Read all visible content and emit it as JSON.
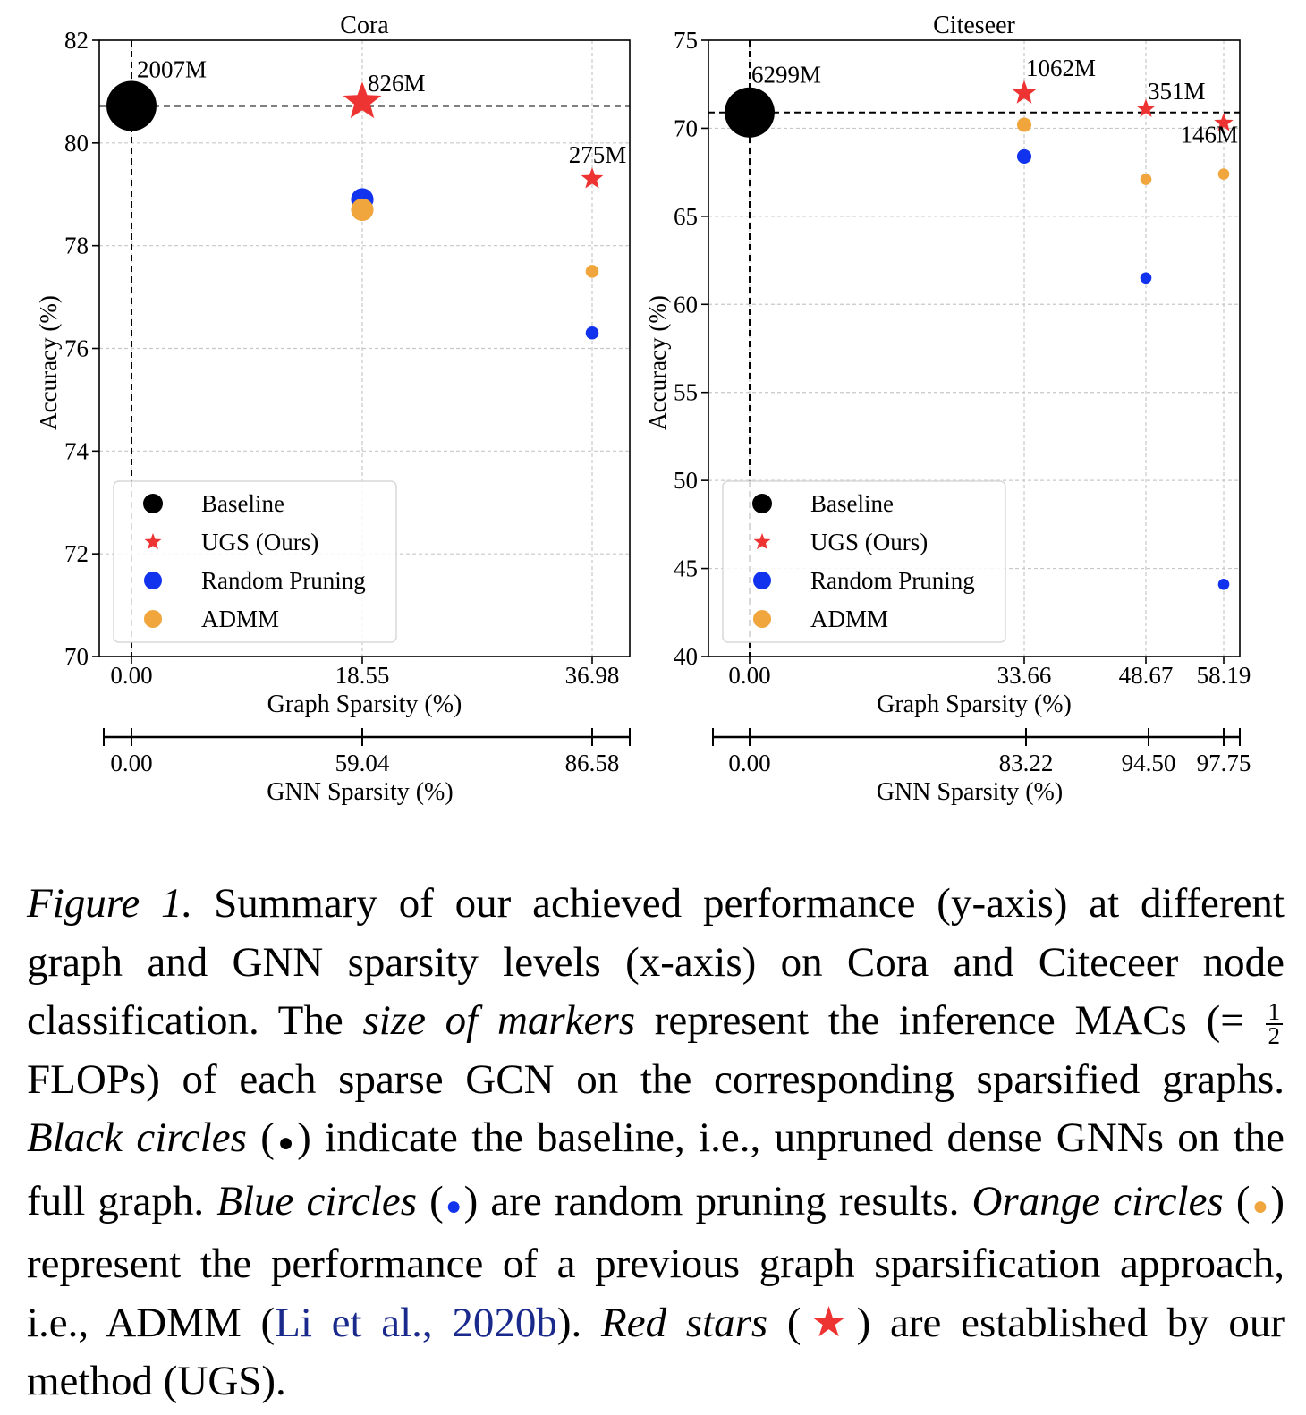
{
  "chart_data": [
    {
      "type": "scatter",
      "title": "Cora",
      "xlabel": "Graph Sparsity (%)",
      "ylabel": "Accuracy (%)",
      "ylim": [
        70,
        82
      ],
      "yticks": [
        "70",
        "72",
        "74",
        "76",
        "78",
        "80",
        "82"
      ],
      "x_categories": [
        "0.00",
        "18.55",
        "36.98"
      ],
      "secondary_axis": {
        "label": "GNN Sparsity (%)",
        "ticks": [
          "0.00",
          "59.04",
          "86.58"
        ]
      },
      "grid": true,
      "legend_position": "lower-left",
      "reference_lines": {
        "x": "0.00",
        "y": 80.72
      },
      "series": [
        {
          "name": "Baseline",
          "marker": "circle",
          "color": "#000000",
          "points": [
            {
              "x": "0.00",
              "y": 80.72,
              "label": "2007M",
              "size": 2007
            }
          ]
        },
        {
          "name": "UGS (Ours)",
          "marker": "star",
          "color": "#ee3333",
          "points": [
            {
              "x": "18.55",
              "y": 80.8,
              "label": "826M",
              "size": 826
            },
            {
              "x": "36.98",
              "y": 79.3,
              "label": "275M",
              "size": 275
            }
          ]
        },
        {
          "name": "Random Pruning",
          "marker": "circle",
          "color": "#1133ee",
          "points": [
            {
              "x": "18.55",
              "y": 78.9,
              "size": 826
            },
            {
              "x": "36.98",
              "y": 76.3,
              "size": 275
            }
          ]
        },
        {
          "name": "ADMM",
          "marker": "circle",
          "color": "#f0a63c",
          "points": [
            {
              "x": "18.55",
              "y": 78.7,
              "size": 826
            },
            {
              "x": "36.98",
              "y": 77.5,
              "size": 275
            }
          ]
        }
      ]
    },
    {
      "type": "scatter",
      "title": "Citeseer",
      "xlabel": "Graph Sparsity (%)",
      "ylabel": "Accuracy (%)",
      "ylim": [
        40,
        75
      ],
      "yticks": [
        "40",
        "45",
        "50",
        "55",
        "60",
        "65",
        "70",
        "75"
      ],
      "x_categories": [
        "0.00",
        "33.66",
        "48.67",
        "58.19"
      ],
      "secondary_axis": {
        "label": "GNN Sparsity (%)",
        "ticks": [
          "0.00",
          "83.22",
          "94.50",
          "97.75"
        ]
      },
      "grid": true,
      "legend_position": "lower-left",
      "reference_lines": {
        "x": "0.00",
        "y": 70.9
      },
      "series": [
        {
          "name": "Baseline",
          "marker": "circle",
          "color": "#000000",
          "points": [
            {
              "x": "0.00",
              "y": 70.9,
              "label": "6299M",
              "size": 6299
            }
          ]
        },
        {
          "name": "UGS (Ours)",
          "marker": "star",
          "color": "#ee3333",
          "points": [
            {
              "x": "33.66",
              "y": 72.0,
              "label": "1062M",
              "size": 1062
            },
            {
              "x": "48.67",
              "y": 71.1,
              "label": "351M",
              "size": 351
            },
            {
              "x": "58.19",
              "y": 70.3,
              "label": "146M",
              "size": 146
            }
          ]
        },
        {
          "name": "Random Pruning",
          "marker": "circle",
          "color": "#1133ee",
          "points": [
            {
              "x": "33.66",
              "y": 68.4,
              "size": 1062
            },
            {
              "x": "48.67",
              "y": 61.5,
              "size": 351
            },
            {
              "x": "58.19",
              "y": 44.1,
              "size": 146
            }
          ]
        },
        {
          "name": "ADMM",
          "marker": "circle",
          "color": "#f0a63c",
          "points": [
            {
              "x": "33.66",
              "y": 70.2,
              "size": 1062
            },
            {
              "x": "48.67",
              "y": 67.1,
              "size": 351
            },
            {
              "x": "58.19",
              "y": 67.4,
              "size": 146
            }
          ]
        }
      ]
    }
  ],
  "caption": {
    "figure_label": "Figure 1.",
    "t1": " Summary of our achieved performance (y-axis) at different graph and GNN sparsity levels (x-axis) on Cora and Citeceer node classification. The ",
    "e1": "size of markers",
    "t2": " represent the inference MACs (= ",
    "frac_num": "1",
    "frac_den": "2",
    "t3": " FLOPs) of each sparse GCN on the corresponding sparsified graphs. ",
    "e2": "Black circles",
    "t4": " (",
    "sym_black": "●",
    "t5": ") indicate the baseline, i.e., unpruned dense GNNs on the full graph. ",
    "e3": "Blue circles",
    "t6": " (",
    "sym_blue": "●",
    "t7": ") are random pruning results. ",
    "e4": "Orange circles",
    "t8": " (",
    "sym_orange": "●",
    "t9": ") represent the performance of a previous graph sparsification approach, i.e., ADMM (",
    "cite": "Li et al., 2020b",
    "t10": "). ",
    "e5": "Red stars",
    "t11": " (",
    "sym_star": "★",
    "t12": ") are established by our method (UGS)."
  }
}
